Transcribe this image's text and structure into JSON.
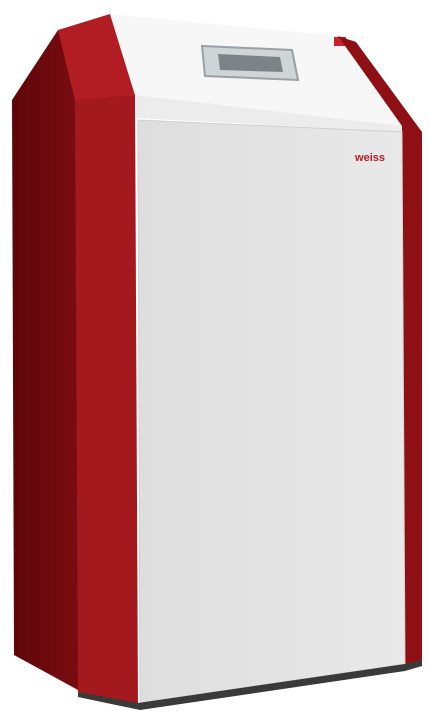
{
  "logo": "weiss"
}
